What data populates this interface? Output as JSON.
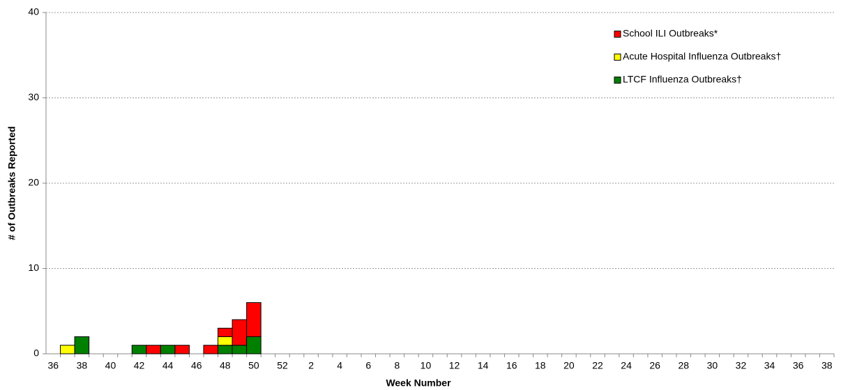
{
  "chart_data": {
    "type": "stacked-bar",
    "x_label": "Week Number",
    "y_label": "# of Outbreaks Reported",
    "categories": [
      "36",
      null,
      "38",
      null,
      "40",
      null,
      "42",
      null,
      "44",
      null,
      "46",
      null,
      "48",
      null,
      "50",
      null,
      "52",
      null,
      "2",
      null,
      "4",
      null,
      "6",
      null,
      "8",
      null,
      "10",
      null,
      "12",
      null,
      "14",
      null,
      "16",
      null,
      "18",
      null,
      "20",
      null,
      "22",
      null,
      "24",
      null,
      "26",
      null,
      "28",
      null,
      "30",
      null,
      "32",
      null,
      "34",
      null,
      "36",
      null,
      "38"
    ],
    "series": [
      {
        "name": "School ILI Outbreaks*",
        "color": "#ff0000",
        "values": [
          0,
          0,
          0,
          0,
          0,
          0,
          0,
          1,
          0,
          1,
          0,
          1,
          1,
          3,
          4,
          0,
          0,
          0,
          0,
          0,
          0,
          0,
          0,
          0,
          0,
          0,
          0,
          0,
          0,
          0,
          0,
          0,
          0,
          0,
          0,
          0,
          0,
          0,
          0,
          0,
          0,
          0,
          0,
          0,
          0,
          0,
          0,
          0,
          0,
          0,
          0,
          0,
          0,
          0,
          0
        ]
      },
      {
        "name": "Acute Hospital Influenza Outbreaks†",
        "color": "#ffff00",
        "values": [
          0,
          1,
          0,
          0,
          0,
          0,
          0,
          0,
          0,
          0,
          0,
          0,
          1,
          0,
          0,
          0,
          0,
          0,
          0,
          0,
          0,
          0,
          0,
          0,
          0,
          0,
          0,
          0,
          0,
          0,
          0,
          0,
          0,
          0,
          0,
          0,
          0,
          0,
          0,
          0,
          0,
          0,
          0,
          0,
          0,
          0,
          0,
          0,
          0,
          0,
          0,
          0,
          0,
          0,
          0
        ]
      },
      {
        "name": "LTCF Influenza Outbreaks†",
        "color": "#008000",
        "values": [
          0,
          0,
          2,
          0,
          0,
          0,
          1,
          0,
          1,
          0,
          0,
          0,
          1,
          1,
          2,
          0,
          0,
          0,
          0,
          0,
          0,
          0,
          0,
          0,
          0,
          0,
          0,
          0,
          0,
          0,
          0,
          0,
          0,
          0,
          0,
          0,
          0,
          0,
          0,
          0,
          0,
          0,
          0,
          0,
          0,
          0,
          0,
          0,
          0,
          0,
          0,
          0,
          0,
          0,
          0
        ]
      }
    ],
    "ylim": [
      0,
      40
    ],
    "yticks": [
      0,
      10,
      20,
      30,
      40
    ],
    "grid": true
  }
}
